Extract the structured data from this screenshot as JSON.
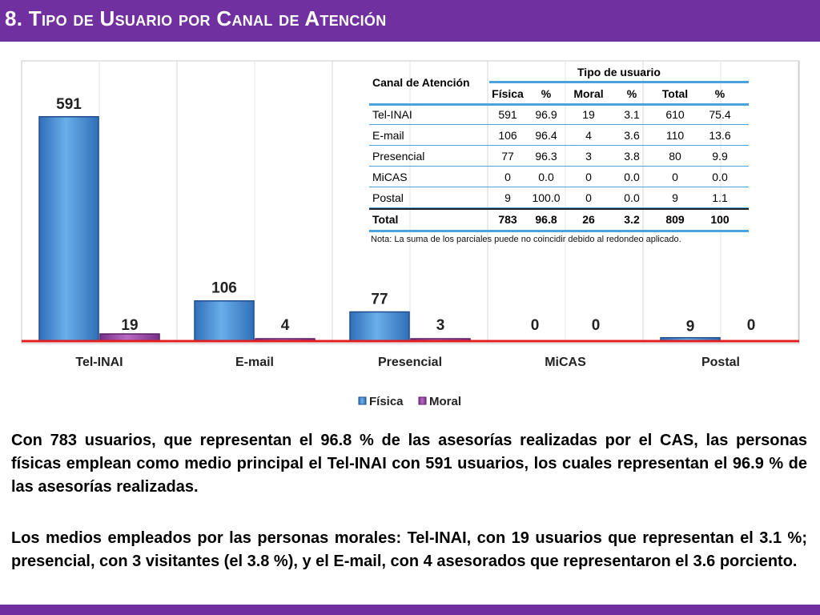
{
  "title": "8. Tipo de Usuario por Canal de Atención",
  "colors": {
    "header_bg": "#7030a0",
    "fisica": "#4a8fd6",
    "moral": "#9b4aa8",
    "baseline": "#e02020",
    "table_rule": "#4aa3df"
  },
  "chart_data": {
    "type": "bar",
    "categories": [
      "Tel-INAI",
      "E-mail",
      "Presencial",
      "MiCAS",
      "Postal"
    ],
    "series": [
      {
        "name": "Física",
        "values": [
          591,
          106,
          77,
          0,
          9
        ]
      },
      {
        "name": "Moral",
        "values": [
          19,
          4,
          3,
          0,
          0
        ]
      }
    ],
    "ylim": [
      0,
      620
    ],
    "legend_position": "bottom",
    "grid": false
  },
  "table": {
    "header_channel": "Canal de Atención",
    "header_group": "Tipo de usuario",
    "subheaders": [
      "Física",
      "%",
      "Moral",
      "%",
      "Total",
      "%"
    ],
    "rows": [
      {
        "channel": "Tel-INAI",
        "cells": [
          "591",
          "96.9",
          "19",
          "3.1",
          "610",
          "75.4"
        ]
      },
      {
        "channel": "E-mail",
        "cells": [
          "106",
          "96.4",
          "4",
          "3.6",
          "110",
          "13.6"
        ]
      },
      {
        "channel": "Presencial",
        "cells": [
          "77",
          "96.3",
          "3",
          "3.8",
          "80",
          "9.9"
        ]
      },
      {
        "channel": "MiCAS",
        "cells": [
          "0",
          "0.0",
          "0",
          "0.0",
          "0",
          "0.0"
        ]
      },
      {
        "channel": "Postal",
        "cells": [
          "9",
          "100.0",
          "0",
          "0.0",
          "9",
          "1.1"
        ]
      }
    ],
    "total": {
      "channel": "Total",
      "cells": [
        "783",
        "96.8",
        "26",
        "3.2",
        "809",
        "100"
      ]
    },
    "note": "Nota: La suma de los parciales puede no coincidir debido al redondeo aplicado."
  },
  "paragraphs": [
    "Con 783 usuarios, que representan el 96.8 % de las asesorías realizadas por el CAS, las personas físicas emplean como medio principal el Tel-INAI con 591 usuarios, los cuales representan el 96.9 % de las asesorías realizadas.",
    "Los medios empleados por las personas morales: Tel-INAI, con 19 usuarios que representan el 3.1 %; presencial, con 3 visitantes (el 3.8 %), y el E-mail, con 4 asesorados que representaron el 3.6 porciento."
  ]
}
